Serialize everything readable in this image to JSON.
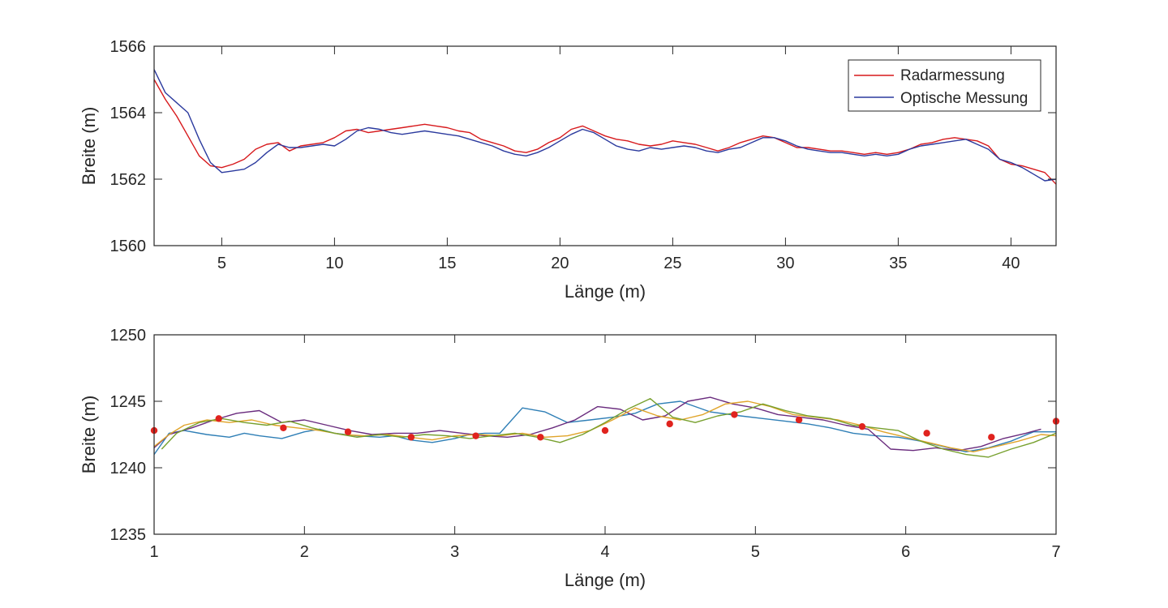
{
  "chart_data": [
    {
      "type": "line",
      "xlabel": "Länge (m)",
      "ylabel": "Breite (m)",
      "xlim": [
        2,
        42
      ],
      "ylim": [
        1560,
        1566
      ],
      "xticks": [
        "5",
        "10",
        "15",
        "20",
        "25",
        "30",
        "35",
        "40"
      ],
      "yticks": [
        "1560",
        "1562",
        "1564",
        "1566"
      ],
      "grid": false,
      "legend_position": "top-right",
      "colors": {
        "radar": "#d7191c",
        "optical": "#2b3a9e"
      },
      "series": [
        {
          "name": "Radarmessung",
          "color": "#d7191c",
          "x": [
            2,
            2.5,
            3,
            3.5,
            4,
            4.5,
            5,
            5.5,
            6,
            6.5,
            7,
            7.5,
            8,
            8.5,
            9,
            9.5,
            10,
            10.5,
            11,
            11.5,
            12,
            12.5,
            13,
            13.5,
            14,
            14.5,
            15,
            15.5,
            16,
            16.5,
            17,
            17.5,
            18,
            18.5,
            19,
            19.5,
            20,
            20.5,
            21,
            21.5,
            22,
            22.5,
            23,
            23.5,
            24,
            24.5,
            25,
            25.5,
            26,
            26.5,
            27,
            27.5,
            28,
            28.5,
            29,
            29.5,
            30,
            30.5,
            31,
            31.5,
            32,
            32.5,
            33,
            33.5,
            34,
            34.5,
            35,
            35.5,
            36,
            36.5,
            37,
            37.5,
            38,
            38.5,
            39,
            39.5,
            40,
            40.5,
            41,
            41.5,
            42
          ],
          "y": [
            1565.0,
            1564.4,
            1563.9,
            1563.3,
            1562.7,
            1562.4,
            1562.35,
            1562.45,
            1562.6,
            1562.9,
            1563.05,
            1563.1,
            1562.85,
            1563.0,
            1563.05,
            1563.1,
            1563.25,
            1563.45,
            1563.5,
            1563.4,
            1563.45,
            1563.5,
            1563.55,
            1563.6,
            1563.65,
            1563.6,
            1563.55,
            1563.45,
            1563.4,
            1563.2,
            1563.1,
            1563.0,
            1562.85,
            1562.8,
            1562.9,
            1563.1,
            1563.25,
            1563.5,
            1563.6,
            1563.45,
            1563.3,
            1563.2,
            1563.15,
            1563.05,
            1563.0,
            1563.05,
            1563.15,
            1563.1,
            1563.05,
            1562.95,
            1562.85,
            1562.95,
            1563.1,
            1563.2,
            1563.3,
            1563.25,
            1563.1,
            1562.95,
            1562.95,
            1562.9,
            1562.85,
            1562.85,
            1562.8,
            1562.75,
            1562.8,
            1562.75,
            1562.8,
            1562.9,
            1563.05,
            1563.1,
            1563.2,
            1563.25,
            1563.2,
            1563.15,
            1563.0,
            1562.6,
            1562.45,
            1562.4,
            1562.3,
            1562.2,
            1561.85
          ]
        },
        {
          "name": "Optische Messung",
          "color": "#2b3a9e",
          "x": [
            2,
            2.5,
            3,
            3.5,
            4,
            4.5,
            5,
            5.5,
            6,
            6.5,
            7,
            7.5,
            8,
            8.5,
            9,
            9.5,
            10,
            10.5,
            11,
            11.5,
            12,
            12.5,
            13,
            13.5,
            14,
            14.5,
            15,
            15.5,
            16,
            16.5,
            17,
            17.5,
            18,
            18.5,
            19,
            19.5,
            20,
            20.5,
            21,
            21.5,
            22,
            22.5,
            23,
            23.5,
            24,
            24.5,
            25,
            25.5,
            26,
            26.5,
            27,
            27.5,
            28,
            28.5,
            29,
            29.5,
            30,
            30.5,
            31,
            31.5,
            32,
            32.5,
            33,
            33.5,
            34,
            34.5,
            35,
            35.5,
            36,
            36.5,
            37,
            37.5,
            38,
            38.5,
            39,
            39.5,
            40,
            40.5,
            41,
            41.5,
            42
          ],
          "y": [
            1565.3,
            1564.6,
            1564.3,
            1564.0,
            1563.2,
            1562.5,
            1562.2,
            1562.25,
            1562.3,
            1562.5,
            1562.8,
            1563.05,
            1562.95,
            1562.95,
            1563.0,
            1563.05,
            1563.0,
            1563.2,
            1563.45,
            1563.55,
            1563.5,
            1563.4,
            1563.35,
            1563.4,
            1563.45,
            1563.4,
            1563.35,
            1563.3,
            1563.2,
            1563.1,
            1563.0,
            1562.85,
            1562.75,
            1562.7,
            1562.8,
            1562.95,
            1563.15,
            1563.35,
            1563.5,
            1563.4,
            1563.2,
            1563.0,
            1562.9,
            1562.85,
            1562.95,
            1562.9,
            1562.95,
            1563.0,
            1562.95,
            1562.85,
            1562.8,
            1562.9,
            1562.95,
            1563.1,
            1563.25,
            1563.25,
            1563.15,
            1563.0,
            1562.9,
            1562.85,
            1562.8,
            1562.8,
            1562.75,
            1562.7,
            1562.75,
            1562.7,
            1562.75,
            1562.9,
            1563.0,
            1563.05,
            1563.1,
            1563.15,
            1563.2,
            1563.05,
            1562.9,
            1562.6,
            1562.5,
            1562.35,
            1562.15,
            1561.95,
            1562.0
          ]
        }
      ]
    },
    {
      "type": "line",
      "xlabel": "Länge (m)",
      "ylabel": "Breite (m)",
      "xlim": [
        1,
        7
      ],
      "ylim": [
        1235,
        1250
      ],
      "xticks": [
        "1",
        "2",
        "3",
        "4",
        "5",
        "6",
        "7"
      ],
      "yticks": [
        "1235",
        "1240",
        "1245",
        "1250"
      ],
      "grid": false,
      "series": [
        {
          "color": "#2f7fb6",
          "x": [
            1.0,
            1.1,
            1.2,
            1.35,
            1.5,
            1.6,
            1.7,
            1.85,
            2.0,
            2.1,
            2.2,
            2.35,
            2.5,
            2.6,
            2.7,
            2.85,
            3.0,
            3.1,
            3.2,
            3.3,
            3.45,
            3.6,
            3.75,
            3.9,
            4.05,
            4.2,
            4.35,
            4.5,
            4.7,
            4.9,
            5.05,
            5.2,
            5.35,
            5.5,
            5.65,
            5.8,
            5.95,
            6.1,
            6.25,
            6.4,
            6.55,
            6.7,
            6.85,
            7.0
          ],
          "y": [
            1241.0,
            1242.6,
            1242.8,
            1242.5,
            1242.3,
            1242.6,
            1242.4,
            1242.2,
            1242.7,
            1242.9,
            1242.6,
            1242.4,
            1242.3,
            1242.4,
            1242.1,
            1241.9,
            1242.2,
            1242.5,
            1242.6,
            1242.6,
            1244.5,
            1244.2,
            1243.4,
            1243.6,
            1243.8,
            1244.1,
            1244.8,
            1245.0,
            1244.2,
            1243.9,
            1243.7,
            1243.5,
            1243.3,
            1243.0,
            1242.6,
            1242.4,
            1242.3,
            1242.0,
            1241.6,
            1241.2,
            1241.5,
            1242.0,
            1242.7,
            1242.7
          ]
        },
        {
          "color": "#6a2c7e",
          "x": [
            1.0,
            1.1,
            1.25,
            1.4,
            1.55,
            1.7,
            1.85,
            2.0,
            2.15,
            2.3,
            2.45,
            2.6,
            2.75,
            2.9,
            3.05,
            3.2,
            3.35,
            3.5,
            3.65,
            3.8,
            3.95,
            4.1,
            4.25,
            4.4,
            4.55,
            4.7,
            4.85,
            5.0,
            5.15,
            5.3,
            5.45,
            5.6,
            5.75,
            5.9,
            6.05,
            6.2,
            6.35,
            6.5,
            6.65,
            6.8,
            6.9
          ],
          "y": [
            1241.5,
            1242.5,
            1243.0,
            1243.6,
            1244.1,
            1244.3,
            1243.4,
            1243.6,
            1243.2,
            1242.8,
            1242.5,
            1242.6,
            1242.6,
            1242.8,
            1242.6,
            1242.4,
            1242.3,
            1242.5,
            1243.0,
            1243.6,
            1244.6,
            1244.4,
            1243.6,
            1243.9,
            1245.0,
            1245.3,
            1244.8,
            1244.5,
            1244.0,
            1243.8,
            1243.6,
            1243.2,
            1242.9,
            1241.4,
            1241.3,
            1241.5,
            1241.3,
            1241.6,
            1242.2,
            1242.6,
            1242.9
          ]
        },
        {
          "color": "#e0a42a",
          "x": [
            1.0,
            1.1,
            1.2,
            1.35,
            1.5,
            1.65,
            1.8,
            1.95,
            2.1,
            2.25,
            2.4,
            2.55,
            2.7,
            2.85,
            3.0,
            3.15,
            3.3,
            3.45,
            3.6,
            3.75,
            3.9,
            4.05,
            4.2,
            4.35,
            4.5,
            4.65,
            4.8,
            4.95,
            5.1,
            5.25,
            5.4,
            5.55,
            5.7,
            5.85,
            6.0,
            6.15,
            6.3,
            6.45,
            6.6,
            6.75,
            6.9,
            7.0
          ],
          "y": [
            1241.6,
            1242.5,
            1243.2,
            1243.6,
            1243.4,
            1243.6,
            1243.2,
            1243.0,
            1242.8,
            1242.5,
            1242.4,
            1242.5,
            1242.3,
            1242.1,
            1242.4,
            1242.5,
            1242.4,
            1242.6,
            1242.3,
            1242.4,
            1242.8,
            1243.6,
            1244.5,
            1243.9,
            1243.6,
            1244.0,
            1244.8,
            1245.0,
            1244.6,
            1244.0,
            1243.8,
            1243.6,
            1243.2,
            1242.7,
            1242.3,
            1241.9,
            1241.5,
            1241.2,
            1241.6,
            1242.0,
            1242.5,
            1242.4
          ]
        },
        {
          "color": "#77a02e",
          "x": [
            1.05,
            1.15,
            1.3,
            1.45,
            1.6,
            1.75,
            1.9,
            2.05,
            2.2,
            2.35,
            2.5,
            2.65,
            2.8,
            2.95,
            3.1,
            3.25,
            3.4,
            3.55,
            3.7,
            3.85,
            4.0,
            4.15,
            4.3,
            4.45,
            4.6,
            4.75,
            4.9,
            5.05,
            5.2,
            5.35,
            5.5,
            5.65,
            5.8,
            5.95,
            6.1,
            6.25,
            6.4,
            6.55,
            6.7,
            6.85,
            7.0
          ],
          "y": [
            1241.4,
            1242.6,
            1243.4,
            1243.7,
            1243.4,
            1243.2,
            1243.5,
            1243.0,
            1242.6,
            1242.3,
            1242.5,
            1242.3,
            1242.5,
            1242.4,
            1242.2,
            1242.4,
            1242.6,
            1242.3,
            1241.9,
            1242.5,
            1243.4,
            1244.4,
            1245.2,
            1243.8,
            1243.4,
            1243.9,
            1244.2,
            1244.8,
            1244.3,
            1243.9,
            1243.7,
            1243.2,
            1243.0,
            1242.8,
            1242.0,
            1241.4,
            1241.0,
            1240.8,
            1241.4,
            1241.9,
            1242.6
          ]
        },
        {
          "color": "#e0231e",
          "markers_only": true,
          "x": [
            1.0,
            1.43,
            1.86,
            2.29,
            2.71,
            3.14,
            3.57,
            4.0,
            4.43,
            4.86,
            5.29,
            5.71,
            6.14,
            6.57,
            7.0
          ],
          "y": [
            1242.8,
            1243.7,
            1243.0,
            1242.7,
            1242.3,
            1242.4,
            1242.3,
            1242.8,
            1243.3,
            1244.0,
            1243.6,
            1243.1,
            1242.6,
            1242.3,
            1243.5
          ]
        }
      ]
    }
  ]
}
